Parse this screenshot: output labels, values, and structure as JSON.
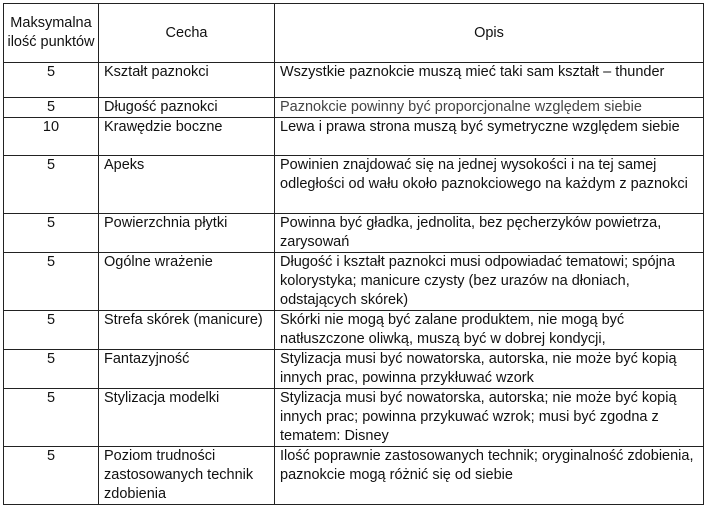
{
  "header": {
    "points": "Maksymalna ilość punktów",
    "feature": "Cecha",
    "description": "Opis"
  },
  "rows": [
    {
      "points": "5",
      "feature": "Kształt paznokci",
      "description": "Wszystkie paznokcie muszą mieć taki sam kształt – thunder"
    },
    {
      "points": "5",
      "feature": "Długość paznokci",
      "description": "Paznokcie powinny być proporcjonalne względem siebie"
    },
    {
      "points": "10",
      "feature": "Krawędzie boczne",
      "description": "Lewa i prawa strona muszą być symetryczne względem siebie"
    },
    {
      "points": "5",
      "feature": "Apeks",
      "description": "Powinien znajdować się na jednej wysokości i na tej samej odległości od wału około paznokciowego na każdym z paznokci"
    },
    {
      "points": "5",
      "feature": "Powierzchnia płytki",
      "description": "Powinna być gładka, jednolita, bez pęcherzyków powietrza, zarysowań"
    },
    {
      "points": "5",
      "feature": "Ogólne wrażenie",
      "description": "Długość i kształt paznokci musi odpowiadać tematowi; spójna kolorystyka; manicure czysty (bez urazów na dłoniach, odstających skórek)"
    },
    {
      "points": "5",
      "feature": "Strefa skórek (manicure)",
      "description": "Skórki nie mogą być zalane produktem, nie mogą być natłuszczone oliwką, muszą być w dobrej kondycji,"
    },
    {
      "points": "5",
      "feature": "Fantazyjność",
      "description": "Stylizacja musi być nowatorska, autorska, nie może być kopią innych prac, powinna przykłuwać wzork"
    },
    {
      "points": "5",
      "feature": "Stylizacja modelki",
      "description": "Stylizacja musi być nowatorska, autorska; nie może być kopią innych prac; powinna przykuwać wzrok; musi być zgodna z tematem: Disney"
    },
    {
      "points": "5",
      "feature": "Poziom trudności zastosowanych technik zdobienia",
      "description": "Ilość poprawnie zastosowanych technik; oryginalność zdobienia, paznokcie mogą różnić się od siebie"
    }
  ]
}
